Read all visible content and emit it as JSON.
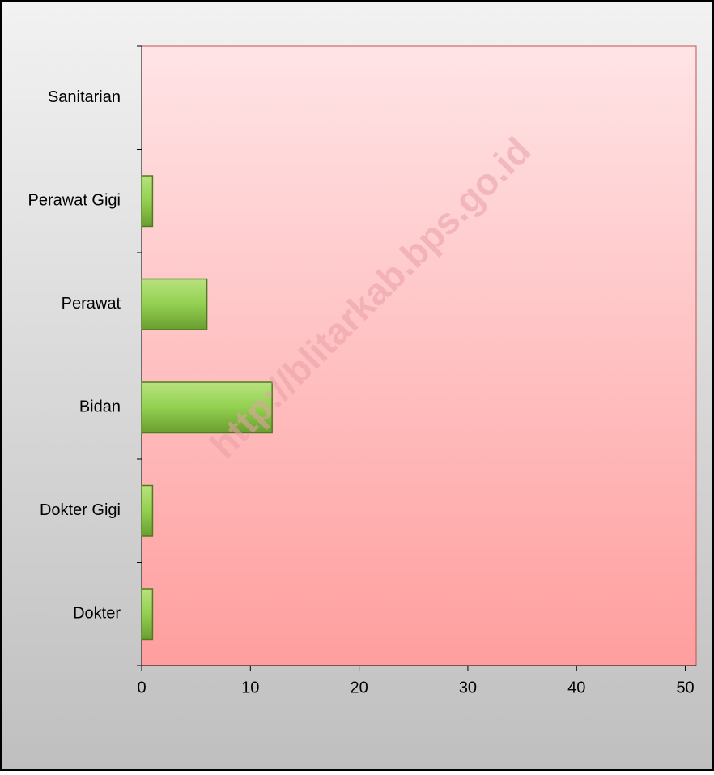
{
  "chart_data": {
    "type": "hbar",
    "categories": [
      "Dokter",
      "Dokter Gigi",
      "Bidan",
      "Perawat",
      "Perawat Gigi",
      "Sanitarian"
    ],
    "values": [
      1,
      1,
      12,
      6,
      1,
      0
    ],
    "color": "#92d050",
    "xlim": [
      0,
      51
    ],
    "xticks": [
      0,
      10,
      20,
      30,
      40,
      50
    ],
    "watermark": "http://blitarkab.bps.go.id"
  }
}
